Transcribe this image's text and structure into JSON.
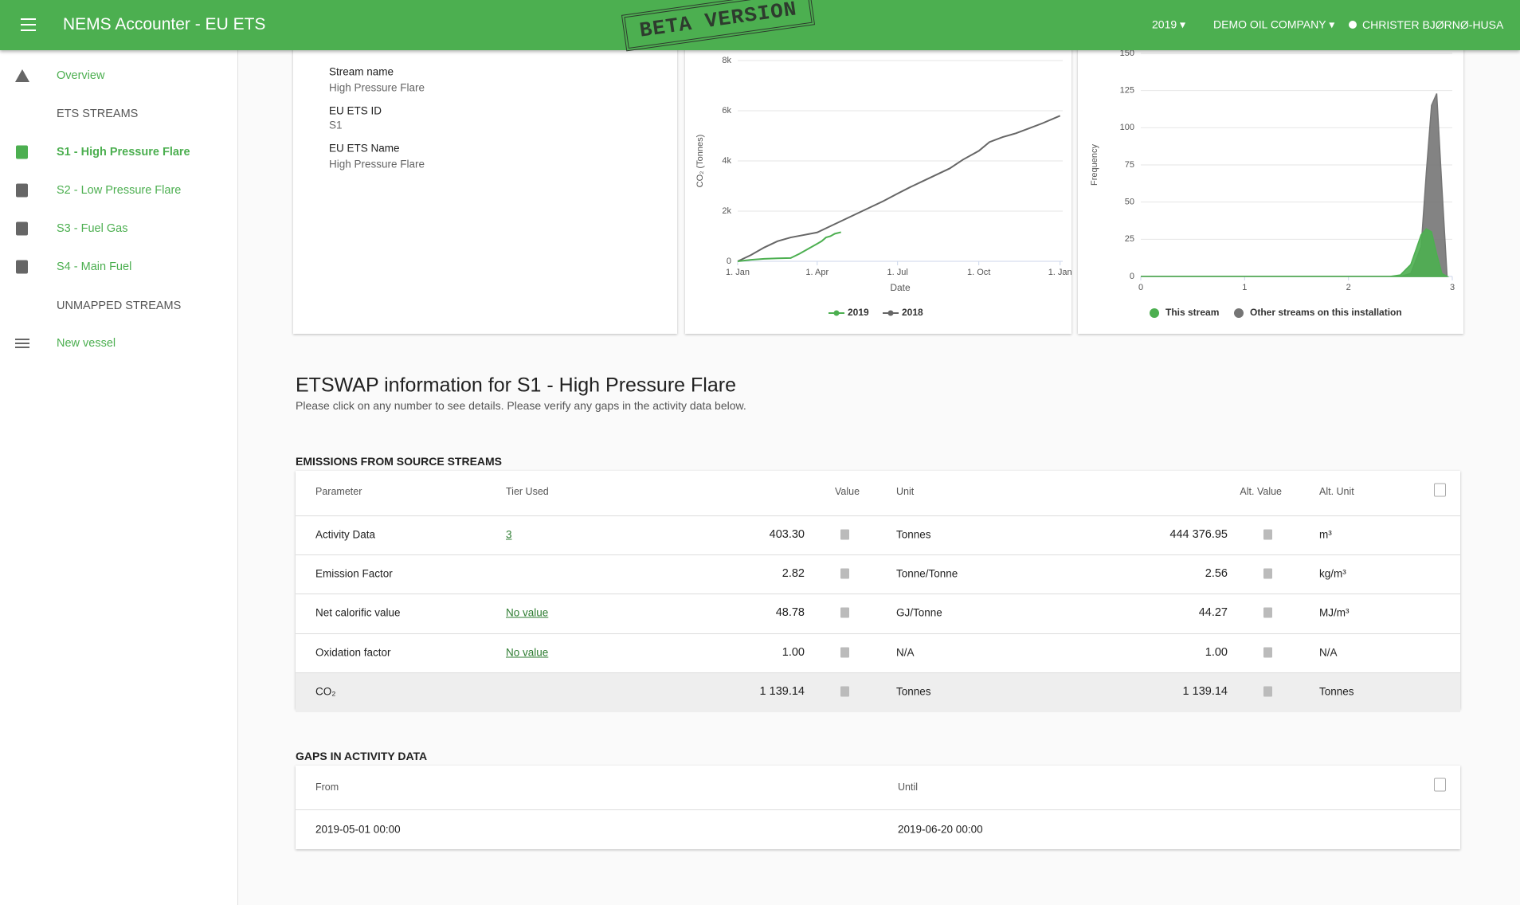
{
  "header": {
    "title": "NEMS Accounter - EU ETS",
    "stamp": "BETA VERSION",
    "year": "2019",
    "company": "DEMO OIL COMPANY",
    "user": "CHRISTER BJØRNØ-HUSA"
  },
  "sidebar": {
    "items": [
      "Overview",
      "ETS STREAMS",
      "S1 - High Pressure Flare",
      "S2 - Low Pressure Flare",
      "S3 - Fuel Gas",
      "S4 - Main Fuel",
      "UNMAPPED STREAMS",
      "New vessel"
    ]
  },
  "stream_info": {
    "fields": [
      {
        "label": "Stream name",
        "value": "High Pressure Flare"
      },
      {
        "label": "EU ETS ID",
        "value": "S1"
      },
      {
        "label": "EU ETS Name",
        "value": "High Pressure Flare"
      }
    ]
  },
  "cumulative_chart": {
    "type": "line",
    "y_label": "CO₂ (Tonnes)",
    "x_label": "Date",
    "xlim": [
      0,
      368
    ],
    "ylim": [
      0,
      8000
    ],
    "xticks": [
      {
        "value": 0,
        "label": "1. Jan"
      },
      {
        "value": 90,
        "label": "1. Apr"
      },
      {
        "value": 181,
        "label": "1. Jul"
      },
      {
        "value": 273,
        "label": "1. Oct"
      },
      {
        "value": 365,
        "label": "1. Jan"
      }
    ],
    "yticks": [
      0,
      {
        "value": 2000,
        "label": "2k"
      },
      {
        "value": 4000,
        "label": "4k"
      },
      {
        "value": 6000,
        "label": "6k"
      },
      {
        "value": 8000,
        "label": "8k"
      }
    ],
    "grid": true,
    "series": [
      {
        "name": "2019",
        "color": "#4caf50",
        "x": [
          0,
          15,
          30,
          45,
          60,
          70,
          80,
          90,
          95,
          100,
          105,
          110,
          117
        ],
        "values": [
          0,
          60,
          100,
          120,
          130,
          300,
          500,
          700,
          800,
          950,
          1000,
          1100,
          1160
        ]
      },
      {
        "name": "2018",
        "color": "#666666",
        "x": [
          0,
          15,
          30,
          45,
          60,
          75,
          90,
          105,
          120,
          135,
          150,
          165,
          181,
          195,
          210,
          225,
          240,
          255,
          273,
          285,
          300,
          315,
          330,
          345,
          365
        ],
        "values": [
          0,
          250,
          550,
          800,
          950,
          1050,
          1150,
          1400,
          1650,
          1900,
          2150,
          2400,
          2700,
          2950,
          3200,
          3450,
          3700,
          4050,
          4400,
          4750,
          4950,
          5100,
          5300,
          5500,
          5800
        ]
      }
    ]
  },
  "distribution_chart": {
    "type": "area",
    "y_label": "Frequency",
    "xlim": [
      0,
      3
    ],
    "ylim": [
      0,
      150
    ],
    "xticks": [
      0,
      1,
      2,
      3
    ],
    "yticks": [
      0,
      25,
      50,
      75,
      100,
      125,
      150
    ],
    "grid": true,
    "x": [
      0,
      0.5,
      1,
      1.5,
      2,
      2.4,
      2.5,
      2.6,
      2.7,
      2.75,
      2.8,
      2.85,
      2.9,
      2.95
    ],
    "series": [
      {
        "name": "Other streams on this installation",
        "color": "#757575",
        "values": [
          0,
          0,
          0,
          0,
          0,
          0,
          0,
          2,
          20,
          70,
          115,
          123,
          60,
          0
        ]
      },
      {
        "name": "This stream",
        "color": "#4caf50",
        "values": [
          0,
          0,
          0,
          0,
          0,
          0,
          1,
          8,
          28,
          32,
          30,
          15,
          2,
          0
        ]
      }
    ]
  },
  "etswap": {
    "title": "ETSWAP information for S1 - High Pressure Flare",
    "subtitle": "Please click on any number to see details. Please verify any gaps in the activity data below."
  },
  "emissions": {
    "title": "EMISSIONS FROM SOURCE STREAMS",
    "columns": [
      "Parameter",
      "Tier Used",
      "Value",
      "Unit",
      "Alt. Value",
      "Alt. Unit"
    ],
    "rows": [
      [
        "Activity Data",
        "3",
        "403.30",
        "Tonnes",
        "444 376.95",
        "m³"
      ],
      [
        "Emission Factor",
        null,
        "2.82",
        "Tonne/Tonne",
        "2.56",
        "kg/m³"
      ],
      [
        "Net calorific value",
        "No value",
        "48.78",
        "GJ/Tonne",
        "44.27",
        "MJ/m³"
      ],
      [
        "Oxidation factor",
        "No value",
        "1.00",
        "N/A",
        "1.00",
        "N/A"
      ],
      [
        "CO₂",
        null,
        "1 139.14",
        "Tonnes",
        "1 139.14",
        "Tonnes"
      ]
    ]
  },
  "gaps": {
    "title": "GAPS IN ACTIVITY DATA",
    "columns": [
      "From",
      "Until"
    ],
    "rows": [
      [
        "2019-05-01 00:00",
        "2019-06-20 00:00"
      ]
    ]
  }
}
